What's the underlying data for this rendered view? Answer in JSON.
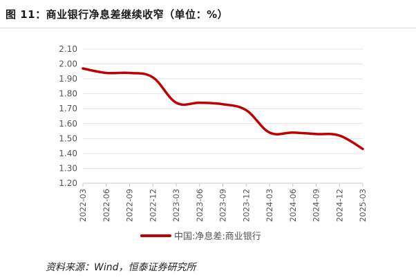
{
  "title": "图 11：商业银行净息差继续收窄（单位：%）",
  "source": "资料来源：Wind，恒泰证券研究所",
  "colors": {
    "series": "#c00000",
    "grid": "#e3e3e3",
    "axis": "#c8c8c8",
    "text": "#555555"
  },
  "chart_data": {
    "type": "line",
    "title": "",
    "xlabel": "",
    "ylabel": "",
    "ylim": [
      1.2,
      2.1
    ],
    "yticks": [
      "2.10",
      "2.00",
      "1.90",
      "1.80",
      "1.70",
      "1.60",
      "1.50",
      "1.40",
      "1.30",
      "1.20"
    ],
    "ytick_values": [
      2.1,
      2.0,
      1.9,
      1.8,
      1.7,
      1.6,
      1.5,
      1.4,
      1.3,
      1.2
    ],
    "x": [
      "2022-03",
      "2022-06",
      "2022-09",
      "2022-12",
      "2023-03",
      "2023-06",
      "2023-09",
      "2023-12",
      "2024-03",
      "2024-06",
      "2024-09",
      "2024-12",
      "2025-03"
    ],
    "grid": true,
    "legend_position": "bottom",
    "series": [
      {
        "name": "中国:净息差:商业银行",
        "color": "#c00000",
        "values": [
          1.97,
          1.94,
          1.94,
          1.91,
          1.74,
          1.74,
          1.73,
          1.69,
          1.54,
          1.54,
          1.53,
          1.52,
          1.43
        ]
      }
    ]
  }
}
